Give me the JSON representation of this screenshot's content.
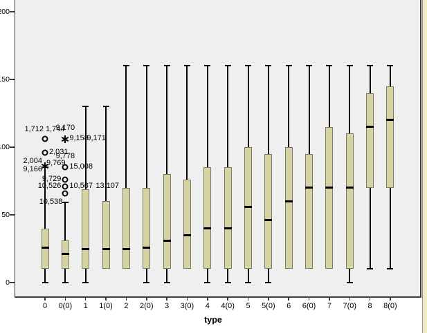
{
  "colors": {
    "plot_bg": "#efefef",
    "frame": "#3c3c3c",
    "box_fill": "#d6d3a2",
    "box_border": "#7b7a6b",
    "median_line": "#000000",
    "whisker": "#000000",
    "text": "#000000",
    "page_bg": "#ffffff",
    "right_strip_fill": "#f2ecc3",
    "right_strip_border": "#96958a"
  },
  "chart_data": {
    "type": "boxplot",
    "title": "",
    "xlabel": "type",
    "ylabel": "",
    "ylim": [
      0,
      200
    ],
    "yticks": [
      200,
      150,
      100,
      50,
      0
    ],
    "grid": false,
    "legend": "none",
    "categories": [
      "0",
      "0(0)",
      "1",
      "1(0)",
      "2",
      "2(0)",
      "3",
      "3(0)",
      "4",
      "4(0)",
      "5",
      "5(0)",
      "6",
      "6(0)",
      "7",
      "7(0)",
      "8",
      "8(0)"
    ],
    "boxes": [
      {
        "category": "0",
        "low": 0,
        "q1": 10,
        "median": 26,
        "q3": 40,
        "high": 85
      },
      {
        "category": "0(0)",
        "low": 0,
        "q1": 10,
        "median": 21,
        "q3": 31,
        "high": 59
      },
      {
        "category": "1",
        "low": 0,
        "q1": 10,
        "median": 25,
        "q3": 69,
        "high": 130
      },
      {
        "category": "1(0)",
        "low": 10,
        "q1": 10,
        "median": 25,
        "q3": 60,
        "high": 130
      },
      {
        "category": "2",
        "low": 10,
        "q1": 10,
        "median": 25,
        "q3": 70,
        "high": 160
      },
      {
        "category": "2(0)",
        "low": 0,
        "q1": 10,
        "median": 26,
        "q3": 70,
        "high": 160
      },
      {
        "category": "3",
        "low": 0,
        "q1": 10,
        "median": 31,
        "q3": 80,
        "high": 160
      },
      {
        "category": "3(0)",
        "low": 10,
        "q1": 10,
        "median": 35,
        "q3": 76,
        "high": 160
      },
      {
        "category": "4",
        "low": 0,
        "q1": 10,
        "median": 40,
        "q3": 85,
        "high": 160
      },
      {
        "category": "4(0)",
        "low": 0,
        "q1": 10,
        "median": 40,
        "q3": 85,
        "high": 160
      },
      {
        "category": "5",
        "low": 0,
        "q1": 10,
        "median": 56,
        "q3": 100,
        "high": 160
      },
      {
        "category": "5(0)",
        "low": 0,
        "q1": 10,
        "median": 46,
        "q3": 95,
        "high": 160
      },
      {
        "category": "6",
        "low": 10,
        "q1": 10,
        "median": 60,
        "q3": 100,
        "high": 160
      },
      {
        "category": "6(0)",
        "low": 10,
        "q1": 10,
        "median": 70,
        "q3": 95,
        "high": 160
      },
      {
        "category": "7",
        "low": 10,
        "q1": 10,
        "median": 70,
        "q3": 115,
        "high": 160
      },
      {
        "category": "7(0)",
        "low": 0,
        "q1": 10,
        "median": 70,
        "q3": 110,
        "high": 160
      },
      {
        "category": "8",
        "low": 10,
        "q1": 70,
        "median": 115,
        "q3": 140,
        "high": 160
      },
      {
        "category": "8(0)",
        "low": 10,
        "q1": 70,
        "median": 120,
        "q3": 145,
        "high": 160
      }
    ],
    "outliers": [
      {
        "category": "0",
        "value": 106,
        "marker": "circle",
        "labels": [
          {
            "text": "1,712",
            "pos": "above-left"
          },
          {
            "text": "1,744",
            "pos": "above-right"
          }
        ]
      },
      {
        "category": "0",
        "value": 96,
        "marker": "circle",
        "labels": [
          {
            "text": "2,031",
            "pos": "right"
          }
        ]
      },
      {
        "category": "0",
        "value": 86,
        "marker": "star",
        "labels": [
          {
            "text": "2,004",
            "pos": "left-up"
          },
          {
            "text": "9,166",
            "pos": "left-down"
          },
          {
            "text": "9,769",
            "pos": "right-up"
          }
        ]
      },
      {
        "category": "0(0)",
        "value": 106,
        "marker": "star",
        "labels": [
          {
            "text": "9,170",
            "pos": "above"
          },
          {
            "text": "9,158",
            "pos": "right"
          },
          {
            "text": "9,171",
            "pos": "right2a"
          }
        ]
      },
      {
        "category": "0(0)",
        "value": 85,
        "marker": "circle",
        "labels": [
          {
            "text": "9,778",
            "pos": "above"
          },
          {
            "text": "15,008",
            "pos": "right"
          }
        ]
      },
      {
        "category": "0(0)",
        "value": 76,
        "marker": "circle",
        "labels": [
          {
            "text": "9,729",
            "pos": "left"
          }
        ]
      },
      {
        "category": "0(0)",
        "value": 71,
        "marker": "circle",
        "labels": [
          {
            "text": "10,526",
            "pos": "left"
          },
          {
            "text": "10,567",
            "pos": "right"
          },
          {
            "text": "13,107",
            "pos": "right2b"
          }
        ]
      },
      {
        "category": "0(0)",
        "value": 66,
        "marker": "circle",
        "labels": [
          {
            "text": "10,538",
            "pos": "below-left"
          }
        ]
      }
    ]
  }
}
